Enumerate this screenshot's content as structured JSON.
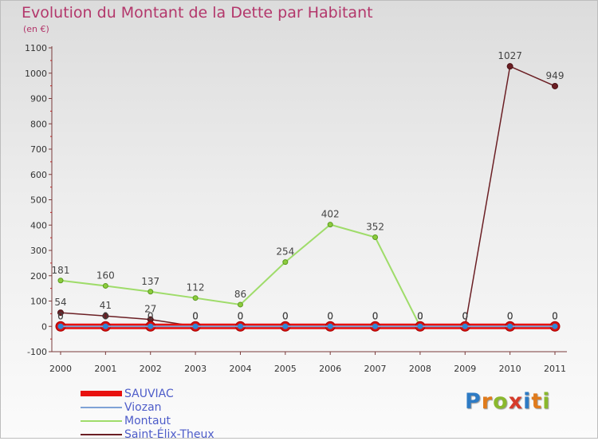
{
  "header": {
    "title": "Evolution du Montant de la Dette par Habitant",
    "subtitle": "(en €)"
  },
  "logo": {
    "letters": [
      "P",
      "r",
      "o",
      "x",
      "i",
      "t",
      "i"
    ],
    "colors": [
      "#2e7bc4",
      "#e07b1c",
      "#8ab82d",
      "#d63b2a",
      "#2e7bc4",
      "#e07b1c",
      "#8ab82d"
    ]
  },
  "chart_data": {
    "type": "line",
    "title": "Evolution du Montant de la Dette par Habitant",
    "ylabel": "(en €)",
    "xlabel": "",
    "ylim": [
      -100,
      1100
    ],
    "yticks": [
      -100,
      0,
      100,
      200,
      300,
      400,
      500,
      600,
      700,
      800,
      900,
      1000,
      1100
    ],
    "categories": [
      "2000",
      "2001",
      "2002",
      "2003",
      "2004",
      "2005",
      "2006",
      "2007",
      "2008",
      "2009",
      "2010",
      "2011"
    ],
    "grid": false,
    "legend_position": "bottom-left",
    "series": [
      {
        "name": "SAUVIAC",
        "color": "#e8110f",
        "values": [
          0,
          0,
          0,
          0,
          0,
          0,
          0,
          0,
          0,
          0,
          0,
          0
        ]
      },
      {
        "name": "Viozan",
        "color": "#7fa3d6",
        "values": [
          0,
          0,
          0,
          0,
          0,
          0,
          0,
          0,
          0,
          0,
          0,
          0
        ]
      },
      {
        "name": "Montaut",
        "color": "#9fdc6a",
        "values": [
          181,
          160,
          137,
          112,
          86,
          254,
          402,
          352,
          0,
          0,
          0,
          0
        ]
      },
      {
        "name": "Saint-Élix-Theux",
        "color": "#6b1f24",
        "values": [
          54,
          41,
          27,
          0,
          0,
          0,
          0,
          0,
          0,
          0,
          1027,
          949
        ]
      }
    ]
  }
}
